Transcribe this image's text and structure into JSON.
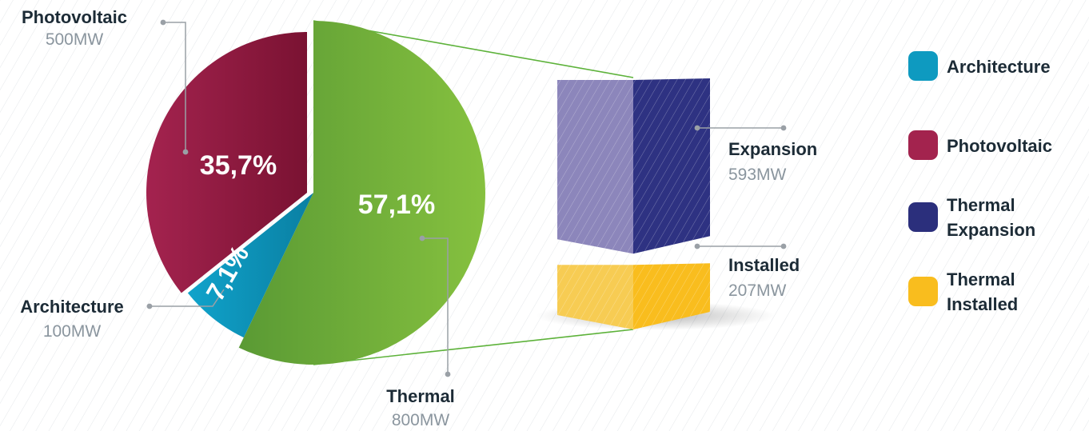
{
  "colors": {
    "architecture": "#0e9ac0",
    "photovoltaic": "#a3234e",
    "thermal": "#7cb43c",
    "thermal_expansion": "#2b2f7c",
    "thermal_installed": "#f9bd1e",
    "label_dark": "#1c2b36",
    "label_gray": "#8a959e",
    "leader": "#9aa0a6",
    "connector": "#5db23a"
  },
  "chart_data": [
    {
      "type": "pie",
      "slices": [
        {
          "name": "Architecture",
          "value": 100,
          "unit": "MW",
          "value_label": "100MW",
          "percent": 7.1,
          "percent_label": "7,1%",
          "color": "#0e9ac0"
        },
        {
          "name": "Photovoltaic",
          "value": 500,
          "unit": "MW",
          "value_label": "500MW",
          "percent": 35.7,
          "percent_label": "35,7%",
          "color": "#a3234e"
        },
        {
          "name": "Thermal",
          "value": 800,
          "unit": "MW",
          "value_label": "800MW",
          "percent": 57.1,
          "percent_label": "57,1%",
          "color": "#7cb43c"
        }
      ]
    },
    {
      "type": "bar",
      "stacked": true,
      "parent": "Thermal",
      "categories": [
        "Thermal"
      ],
      "series": [
        {
          "name": "Installed",
          "values": [
            207
          ],
          "value_label": "207MW",
          "color": "#f9bd1e"
        },
        {
          "name": "Expansion",
          "values": [
            593
          ],
          "value_label": "593MW",
          "color": "#2b2f7c"
        }
      ]
    }
  ],
  "legend": {
    "placement": "right",
    "items": [
      {
        "icon": "swatch-square-icon",
        "lines": [
          "Architecture"
        ],
        "color": "#0e9ac0"
      },
      {
        "icon": "swatch-square-icon",
        "lines": [
          "Photovoltaic"
        ],
        "color": "#a3234e"
      },
      {
        "icon": "swatch-square-icon",
        "lines": [
          "Thermal",
          "Expansion"
        ],
        "color": "#2b2f7c"
      },
      {
        "icon": "swatch-square-icon",
        "lines": [
          "Thermal",
          "Installed"
        ],
        "color": "#f9bd1e"
      }
    ]
  }
}
